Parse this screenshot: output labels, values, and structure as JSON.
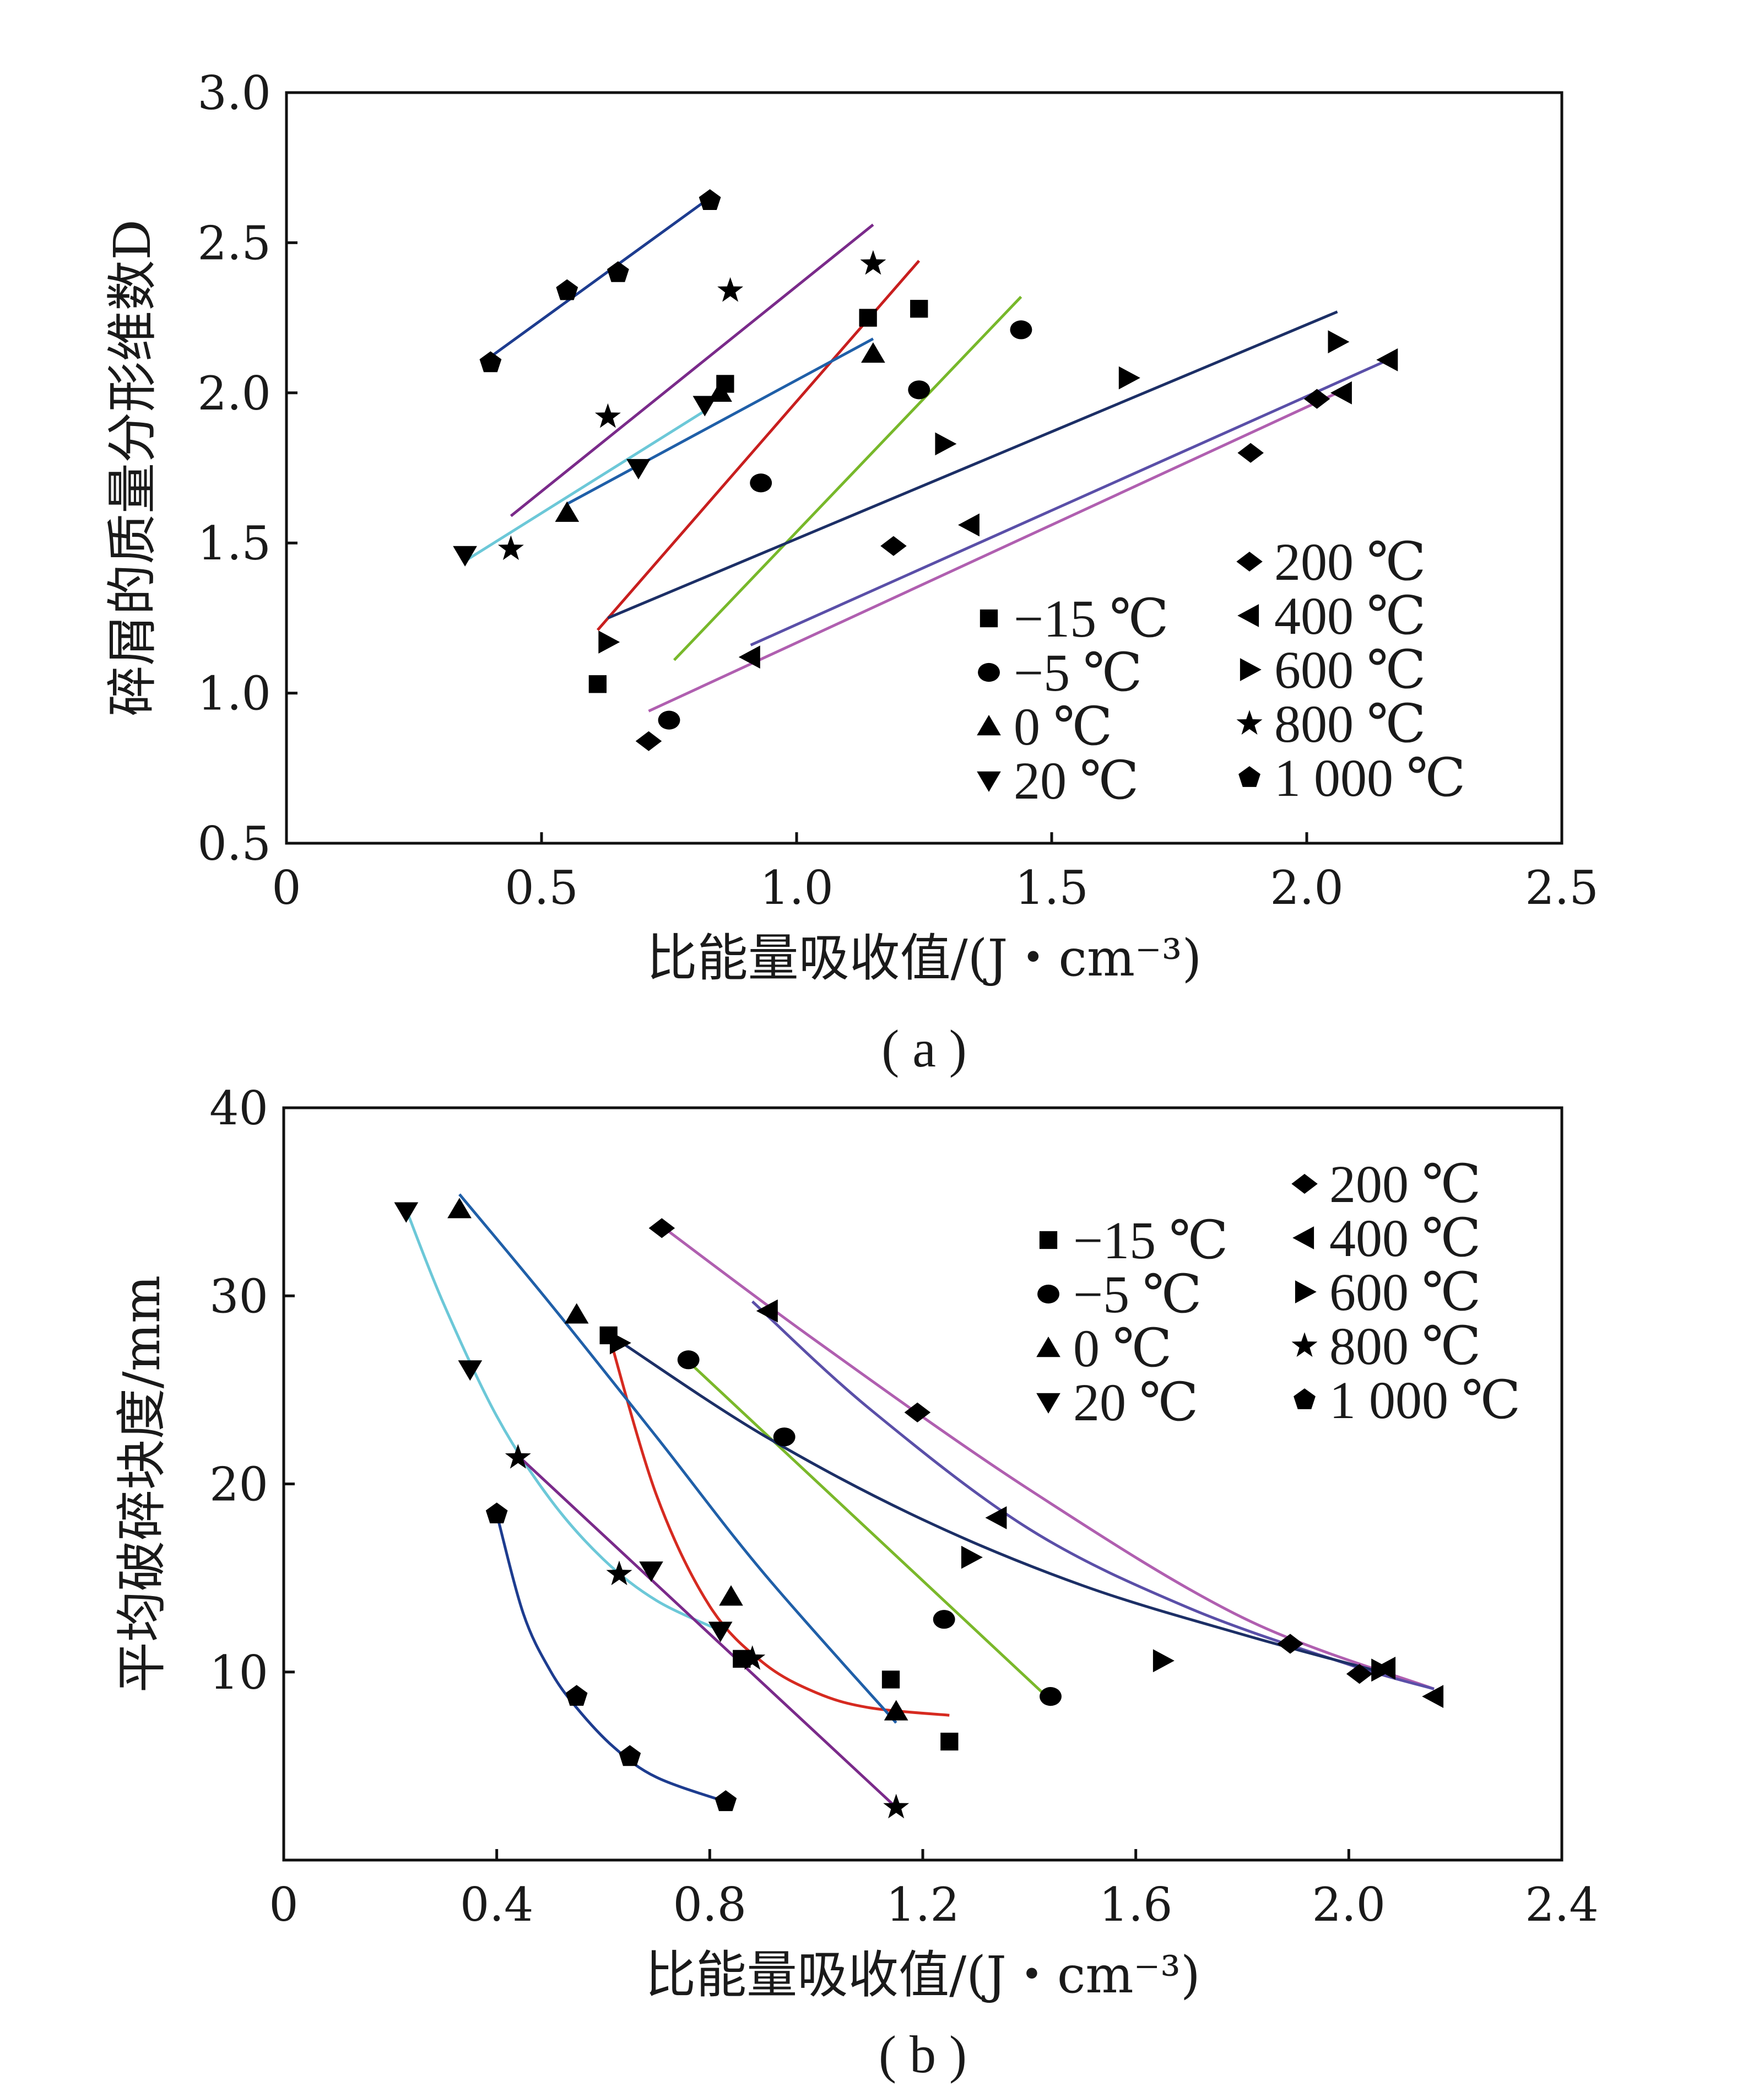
{
  "chart_data": [
    {
      "type": "scatter",
      "caption": "( a )",
      "xlabel": "比能量吸收值/(J・cm⁻³)",
      "ylabel": "碎屑的质量分形维数D",
      "xlim": [
        0,
        2.5
      ],
      "ylim": [
        0.5,
        3.0
      ],
      "xticks": [
        "0",
        "0.5",
        "1.0",
        "1.5",
        "2.0",
        "2.5"
      ],
      "yticks": [
        "0.5",
        "1.0",
        "1.5",
        "2.0",
        "2.5",
        "3.0"
      ],
      "legend": {
        "placement": "bottom-right",
        "columns": 2
      },
      "series": [
        {
          "name": "−15 ℃",
          "marker": "square",
          "color": "#c81e1e",
          "points": [
            [
              0.61,
              1.03
            ],
            [
              0.86,
              2.03
            ],
            [
              1.14,
              2.25
            ],
            [
              1.24,
              2.28
            ]
          ],
          "fit": [
            [
              0.61,
              1.21
            ],
            [
              1.24,
              2.44
            ]
          ]
        },
        {
          "name": "−5 ℃",
          "marker": "circle",
          "color": "#77b82a",
          "points": [
            [
              0.75,
              0.91
            ],
            [
              0.93,
              1.7
            ],
            [
              1.24,
              2.01
            ],
            [
              1.44,
              2.21
            ]
          ],
          "fit": [
            [
              0.76,
              1.11
            ],
            [
              1.44,
              2.32
            ]
          ]
        },
        {
          "name": "0 ℃",
          "marker": "triangle-up",
          "color": "#1f5fa8",
          "points": [
            [
              0.55,
              1.6
            ],
            [
              0.85,
              2.0
            ],
            [
              1.15,
              2.13
            ]
          ],
          "fit": [
            [
              0.55,
              1.63
            ],
            [
              1.15,
              2.18
            ]
          ]
        },
        {
          "name": "20 ℃",
          "marker": "triangle-down",
          "color": "#6cc8d8",
          "points": [
            [
              0.35,
              1.46
            ],
            [
              0.69,
              1.75
            ],
            [
              0.82,
              1.96
            ]
          ],
          "fit": [
            [
              0.35,
              1.44
            ],
            [
              0.82,
              1.94
            ]
          ]
        },
        {
          "name": "200 ℃",
          "marker": "diamond",
          "color": "#b05fb0",
          "points": [
            [
              0.71,
              0.84
            ],
            [
              1.19,
              1.49
            ],
            [
              1.89,
              1.8
            ],
            [
              2.02,
              1.98
            ]
          ],
          "fit": [
            [
              0.71,
              0.94
            ],
            [
              2.06,
              2.0
            ]
          ]
        },
        {
          "name": "400 ℃",
          "marker": "triangle-left",
          "color": "#5a4fa8",
          "points": [
            [
              0.91,
              1.12
            ],
            [
              1.34,
              1.56
            ],
            [
              2.07,
              2.0
            ],
            [
              2.16,
              2.11
            ]
          ],
          "fit": [
            [
              0.91,
              1.16
            ],
            [
              2.16,
              2.11
            ]
          ]
        },
        {
          "name": "600 ℃",
          "marker": "triangle-right",
          "color": "#1c2f66",
          "points": [
            [
              0.63,
              1.17
            ],
            [
              1.29,
              1.83
            ],
            [
              1.65,
              2.05
            ],
            [
              2.06,
              2.17
            ]
          ],
          "fit": [
            [
              0.63,
              1.25
            ],
            [
              2.06,
              2.27
            ]
          ]
        },
        {
          "name": "800 ℃",
          "marker": "star",
          "color": "#7a2a8a",
          "points": [
            [
              0.44,
              1.48
            ],
            [
              0.63,
              1.92
            ],
            [
              0.87,
              2.34
            ],
            [
              1.15,
              2.43
            ]
          ],
          "fit": [
            [
              0.44,
              1.59
            ],
            [
              1.15,
              2.56
            ]
          ]
        },
        {
          "name": "1 000 ℃",
          "marker": "pentagon",
          "color": "#1d3c8f",
          "points": [
            [
              0.4,
              2.1
            ],
            [
              0.55,
              2.34
            ],
            [
              0.65,
              2.4
            ],
            [
              0.83,
              2.64
            ]
          ],
          "fit": [
            [
              0.4,
              2.12
            ],
            [
              0.83,
              2.65
            ]
          ]
        }
      ]
    },
    {
      "type": "scatter",
      "caption": "( b )",
      "xlabel": "比能量吸收值/(J・cm⁻³)",
      "ylabel": "平均破碎块度/mm",
      "xlim": [
        0,
        2.4
      ],
      "ylim": [
        0,
        40
      ],
      "xticks": [
        "0",
        "0.4",
        "0.8",
        "1.2",
        "1.6",
        "2.0",
        "2.4"
      ],
      "yticks": [
        "10",
        "20",
        "30",
        "40"
      ],
      "legend": {
        "placement": "top-right",
        "columns": 2
      },
      "series": [
        {
          "name": "−15 ℃",
          "marker": "square",
          "color": "#d62a20",
          "points": [
            [
              0.61,
              27.9
            ],
            [
              0.86,
              10.7
            ],
            [
              1.14,
              9.6
            ],
            [
              1.25,
              6.3
            ]
          ],
          "fit": [
            [
              0.61,
              28.0
            ],
            [
              0.7,
              19.4
            ],
            [
              0.8,
              13.5
            ],
            [
              0.9,
              10.5
            ],
            [
              1.0,
              8.9
            ],
            [
              1.1,
              8.1
            ],
            [
              1.25,
              7.7
            ]
          ]
        },
        {
          "name": "−5 ℃",
          "marker": "circle",
          "color": "#7ab82a",
          "points": [
            [
              0.76,
              26.6
            ],
            [
              0.94,
              22.5
            ],
            [
              1.24,
              12.8
            ],
            [
              1.44,
              8.7
            ]
          ],
          "fit": [
            [
              0.76,
              26.5
            ],
            [
              1.44,
              8.5
            ]
          ]
        },
        {
          "name": "0 ℃",
          "marker": "triangle-up",
          "color": "#1f5fa8",
          "points": [
            [
              0.33,
              34.6
            ],
            [
              0.55,
              29.0
            ],
            [
              0.84,
              14.0
            ],
            [
              1.15,
              7.9
            ]
          ],
          "fit": [
            [
              0.33,
              35.4
            ],
            [
              0.5,
              29.6
            ],
            [
              0.7,
              22.5
            ],
            [
              0.9,
              15.3
            ],
            [
              1.15,
              7.3
            ]
          ]
        },
        {
          "name": "20 ℃",
          "marker": "triangle-down",
          "color": "#6cc8d8",
          "points": [
            [
              0.23,
              34.5
            ],
            [
              0.35,
              26.1
            ],
            [
              0.69,
              15.4
            ],
            [
              0.82,
              12.2
            ]
          ],
          "fit": [
            [
              0.23,
              34.6
            ],
            [
              0.3,
              29.6
            ],
            [
              0.4,
              23.6
            ],
            [
              0.5,
              19.2
            ],
            [
              0.6,
              16.0
            ],
            [
              0.7,
              13.8
            ],
            [
              0.82,
              12.2
            ]
          ]
        },
        {
          "name": "200 ℃",
          "marker": "diamond",
          "color": "#b05fb0",
          "points": [
            [
              0.71,
              33.6
            ],
            [
              1.19,
              23.8
            ],
            [
              1.89,
              11.5
            ],
            [
              2.02,
              9.9
            ]
          ],
          "fit": [
            [
              0.71,
              33.7
            ],
            [
              1.0,
              27.6
            ],
            [
              1.4,
              19.7
            ],
            [
              1.8,
              12.9
            ],
            [
              2.16,
              9.1
            ]
          ]
        },
        {
          "name": "400 ℃",
          "marker": "triangle-left",
          "color": "#5a4fa8",
          "points": [
            [
              0.91,
              29.2
            ],
            [
              1.34,
              18.2
            ],
            [
              2.07,
              10.2
            ],
            [
              2.16,
              8.7
            ]
          ],
          "fit": [
            [
              0.88,
              29.7
            ],
            [
              1.1,
              24.0
            ],
            [
              1.4,
              17.6
            ],
            [
              1.7,
              13.4
            ],
            [
              2.0,
              10.4
            ],
            [
              2.16,
              9.1
            ]
          ]
        },
        {
          "name": "600 ℃",
          "marker": "triangle-right",
          "color": "#1c2f66",
          "points": [
            [
              0.63,
              27.5
            ],
            [
              1.29,
              16.1
            ],
            [
              1.65,
              10.6
            ],
            [
              2.06,
              10.1
            ]
          ],
          "fit": [
            [
              0.63,
              27.6
            ],
            [
              0.9,
              22.6
            ],
            [
              1.2,
              18.1
            ],
            [
              1.5,
              14.6
            ],
            [
              1.8,
              12.0
            ],
            [
              2.06,
              10.0
            ]
          ]
        },
        {
          "name": "800 ℃",
          "marker": "star",
          "color": "#7a2a8a",
          "points": [
            [
              0.44,
              21.4
            ],
            [
              0.63,
              15.2
            ],
            [
              0.88,
              10.7
            ],
            [
              1.15,
              2.8
            ]
          ],
          "fit": [
            [
              0.44,
              21.5
            ],
            [
              1.15,
              2.8
            ]
          ]
        },
        {
          "name": "1 000 ℃",
          "marker": "pentagon",
          "color": "#1d3c8f",
          "points": [
            [
              0.4,
              18.4
            ],
            [
              0.55,
              8.7
            ],
            [
              0.65,
              5.5
            ],
            [
              0.83,
              3.1
            ]
          ],
          "fit": [
            [
              0.4,
              18.4
            ],
            [
              0.45,
              13.1
            ],
            [
              0.5,
              10.1
            ],
            [
              0.55,
              8.1
            ],
            [
              0.62,
              6.0
            ],
            [
              0.7,
              4.4
            ],
            [
              0.83,
              3.1
            ]
          ]
        }
      ]
    }
  ]
}
